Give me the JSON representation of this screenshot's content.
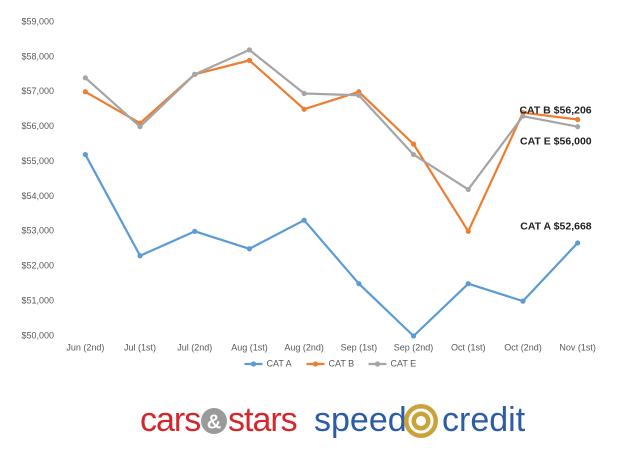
{
  "chart_data": {
    "type": "line",
    "categories": [
      "Jun (2nd)",
      "Jul (1st)",
      "Jul (2nd)",
      "Aug (1st)",
      "Aug (2nd)",
      "Sep (1st)",
      "Sep (2nd)",
      "Oct (1st)",
      "Oct (2nd)",
      "Nov (1st)"
    ],
    "series": [
      {
        "name": "CAT A",
        "color": "#5b9bd5",
        "values": [
          55200,
          52300,
          53000,
          52500,
          53320,
          51500,
          50000,
          51500,
          51000,
          52668
        ],
        "end_label": "CAT A $52,668"
      },
      {
        "name": "CAT B",
        "color": "#ed7d31",
        "values": [
          57000,
          56100,
          57500,
          57900,
          56500,
          57000,
          55500,
          53000,
          56400,
          56206
        ],
        "end_label": "CAT B $56,206"
      },
      {
        "name": "CAT E",
        "color": "#a5a5a5",
        "values": [
          57400,
          56000,
          57500,
          58200,
          56950,
          56900,
          55200,
          54200,
          56300,
          56000
        ],
        "end_label": "CAT E $56,000"
      }
    ],
    "ylim": [
      50000,
      59000
    ],
    "yticks": [
      {
        "value": 50000,
        "label": "$50,000"
      },
      {
        "value": 51000,
        "label": "$51,000"
      },
      {
        "value": 52000,
        "label": "$52,000"
      },
      {
        "value": 53000,
        "label": "$53,000"
      },
      {
        "value": 54000,
        "label": "$54,000"
      },
      {
        "value": 55000,
        "label": "$55,000"
      },
      {
        "value": 56000,
        "label": "$56,000"
      },
      {
        "value": 57000,
        "label": "$57,000"
      },
      {
        "value": 58000,
        "label": "$58,000"
      },
      {
        "value": 59000,
        "label": "$59,000"
      }
    ],
    "grid": false,
    "legend": "bottom"
  },
  "logos": {
    "cars_stars": {
      "first": "cars",
      "amp": "&",
      "second": "stars"
    },
    "speed_credit": {
      "first": "speed",
      "second": "credit"
    }
  }
}
